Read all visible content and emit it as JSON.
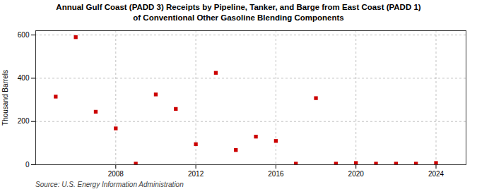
{
  "chart_data": {
    "type": "scatter",
    "title": "Annual Gulf Coast (PADD 3) Receipts by Pipeline, Tanker, and Barge from East Coast (PADD 1)\nof Conventional Other Gasoline Blending Components",
    "ylabel": "Thousand Barrels",
    "annotation": "Source: U.S. Energy Information Administration",
    "x": [
      2005,
      2006,
      2007,
      2008,
      2009,
      2010,
      2011,
      2012,
      2013,
      2014,
      2015,
      2016,
      2017,
      2018,
      2019,
      2020,
      2021,
      2022,
      2023,
      2024
    ],
    "values": [
      315,
      590,
      245,
      168,
      5,
      325,
      258,
      95,
      425,
      68,
      130,
      110,
      5,
      308,
      5,
      8,
      5,
      5,
      5,
      8
    ],
    "color": "#cc0000",
    "marker": "square",
    "xlim": [
      2004,
      2025.5
    ],
    "xticks": [
      2008,
      2012,
      2016,
      2020,
      2024
    ],
    "ylim": [
      0,
      620
    ],
    "yticks": [
      0,
      200,
      400,
      600
    ],
    "grid": true
  }
}
